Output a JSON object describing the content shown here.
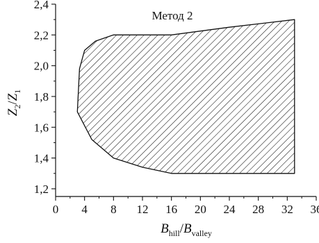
{
  "chart_data": {
    "type": "area",
    "title": "Метод 2",
    "xlabel": {
      "main": "B",
      "sub1": "hill",
      "sep": "/",
      "main2": "B",
      "sub2": "valley"
    },
    "ylabel": {
      "main": "Z",
      "sub1": "2",
      "sep": "/",
      "main2": "Z",
      "sub2": "1"
    },
    "xlim": [
      0,
      36
    ],
    "ylim": [
      1.15,
      2.4
    ],
    "x_ticks": [
      0,
      4,
      8,
      12,
      16,
      20,
      24,
      28,
      32,
      36
    ],
    "x_tick_labels": [
      "0",
      "4",
      "8",
      "12",
      "16",
      "20",
      "24",
      "28",
      "32",
      "36"
    ],
    "y_ticks": [
      1.2,
      1.4,
      1.6,
      1.8,
      2.0,
      2.2,
      2.4
    ],
    "y_tick_labels": [
      "1,2",
      "1,4",
      "1,6",
      "1,8",
      "2,0",
      "2,2",
      "2,4"
    ],
    "grid": false,
    "fill": "diagonal-hatch",
    "region": [
      [
        3.0,
        1.7
      ],
      [
        3.3,
        1.98
      ],
      [
        4.0,
        2.1
      ],
      [
        5.5,
        2.16
      ],
      [
        8.0,
        2.2
      ],
      [
        16.0,
        2.2
      ],
      [
        24.0,
        2.25
      ],
      [
        33.0,
        2.3
      ],
      [
        33.0,
        1.3
      ],
      [
        16.0,
        1.3
      ],
      [
        12.0,
        1.34
      ],
      [
        8.0,
        1.4
      ],
      [
        5.0,
        1.52
      ],
      [
        3.0,
        1.7
      ]
    ]
  }
}
